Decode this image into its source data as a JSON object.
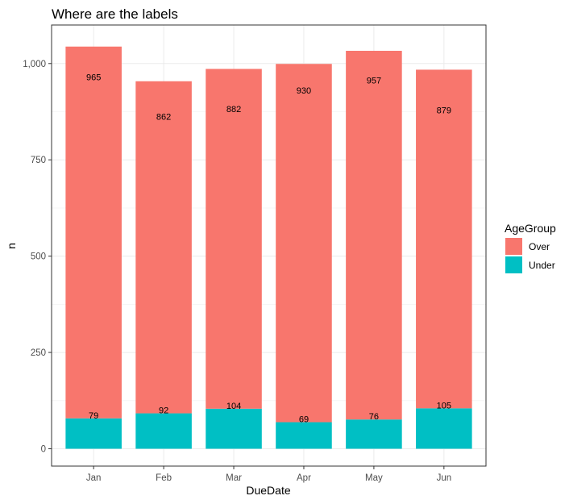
{
  "chart_data": {
    "type": "bar",
    "stacked": true,
    "title": "Where are the labels",
    "xlabel": "DueDate",
    "ylabel": "n",
    "categories": [
      "Jan",
      "Feb",
      "Mar",
      "Apr",
      "May",
      "Jun"
    ],
    "series": [
      {
        "name": "Under",
        "color": "#00BFC4",
        "values": [
          79,
          92,
          104,
          69,
          76,
          105
        ]
      },
      {
        "name": "Over",
        "color": "#F8766D",
        "values": [
          965,
          862,
          882,
          930,
          957,
          879
        ]
      }
    ],
    "data_labels": {
      "Over": [
        "965",
        "862",
        "882",
        "930",
        "957",
        "879"
      ],
      "Under": [
        "79",
        "92",
        "104",
        "69",
        "76",
        "105"
      ]
    },
    "ylim": [
      -45,
      1100
    ],
    "yticks": [
      0,
      250,
      500,
      750,
      1000
    ],
    "ytick_labels": [
      "0",
      "250",
      "500",
      "750",
      "1,000"
    ],
    "grid": true,
    "legend": {
      "title": "AgeGroup",
      "position": "right",
      "entries": [
        {
          "label": "Over",
          "color": "#F8766D"
        },
        {
          "label": "Under",
          "color": "#00BFC4"
        }
      ]
    }
  }
}
